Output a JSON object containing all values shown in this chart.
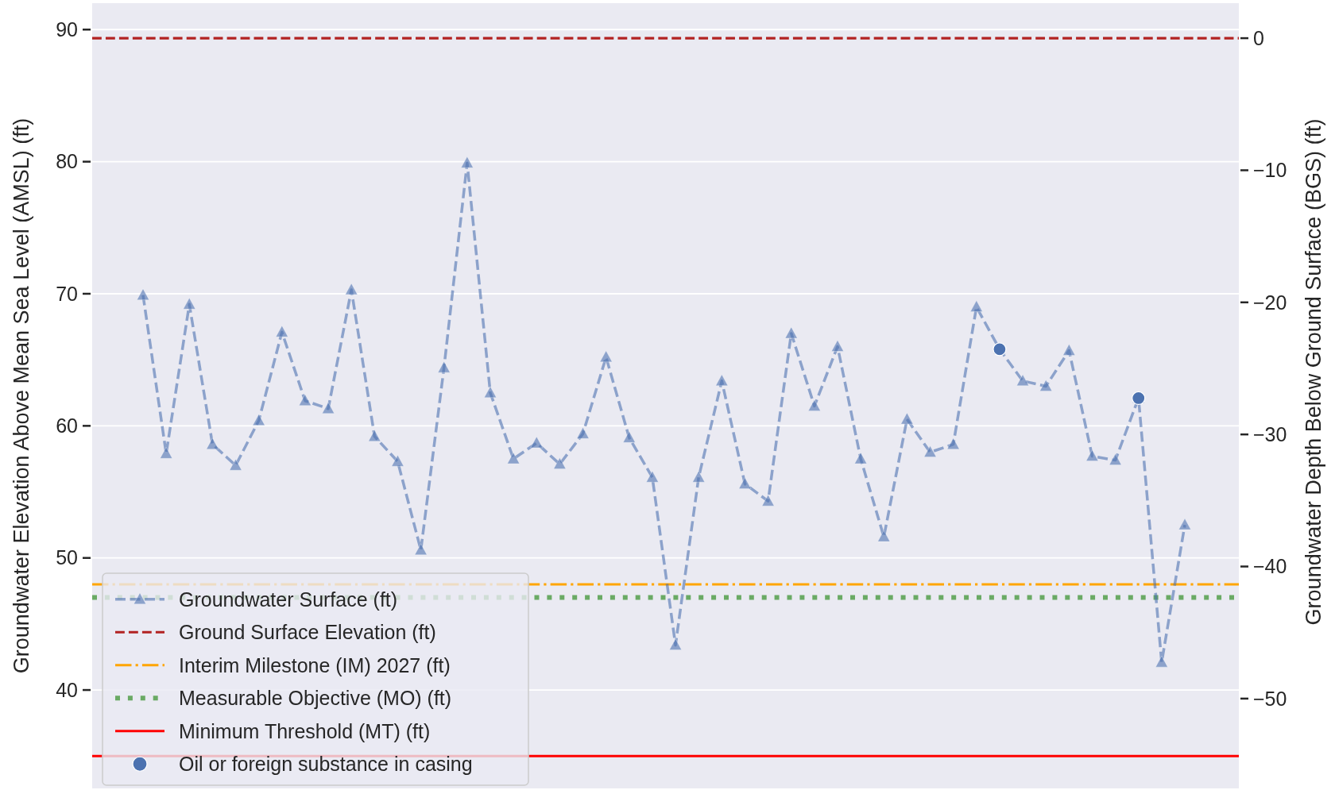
{
  "chart_data": {
    "type": "line",
    "ylabel": "Groundwater Elevation Above Mean Sea Level (AMSL) (ft)",
    "y2label": "Groundwater Depth Below Ground Surface (BGS) (ft)",
    "categories": [
      null,
      null,
      null,
      null,
      null,
      null,
      null,
      null,
      null,
      null,
      null,
      null,
      null,
      null,
      null,
      null,
      null,
      null,
      null,
      null,
      null,
      null,
      null,
      null,
      null,
      null,
      null,
      null,
      null,
      null,
      null,
      null,
      null,
      null,
      null,
      null,
      null,
      null,
      null,
      null,
      null,
      null,
      null,
      null,
      null,
      null
    ],
    "ylim": [
      32.55,
      92.0
    ],
    "yticks": [
      40,
      50,
      60,
      70,
      80,
      90
    ],
    "y2lim": [
      -56.8,
      2.65
    ],
    "y2ticks": [
      {
        "value": -50,
        "label": "−50"
      },
      {
        "value": -40,
        "label": "−40"
      },
      {
        "value": -30,
        "label": "−30"
      },
      {
        "value": -20,
        "label": "−20"
      },
      {
        "value": -10,
        "label": "−10"
      },
      0
    ],
    "grid": "y",
    "legend": "bottom left",
    "series": [
      {
        "name": "Groundwater Surface (ft)",
        "color": "#4c72b0",
        "marker": "triangle",
        "line_style": "dashed",
        "values": [
          69.9,
          57.9,
          69.2,
          58.6,
          57.0,
          60.4,
          67.1,
          61.9,
          61.3,
          70.3,
          59.2,
          57.3,
          50.6,
          64.4,
          79.9,
          62.5,
          57.5,
          58.7,
          57.1,
          59.4,
          65.2,
          59.1,
          56.1,
          43.4,
          56.1,
          63.4,
          55.6,
          54.3,
          67.0,
          61.5,
          66.0,
          57.5,
          51.6,
          60.5,
          58.0,
          58.6,
          69.0,
          65.8,
          63.4,
          63.0,
          65.7,
          57.7,
          57.4,
          62.1,
          42.1,
          52.5
        ]
      },
      {
        "name": "Oil or foreign substance in casing",
        "type": "scatter",
        "color": "#4c72b0",
        "marker": "circle",
        "values": [
          null,
          null,
          null,
          null,
          null,
          null,
          null,
          null,
          null,
          null,
          null,
          null,
          null,
          null,
          null,
          null,
          null,
          null,
          null,
          null,
          null,
          null,
          null,
          null,
          null,
          null,
          null,
          null,
          null,
          null,
          null,
          null,
          null,
          null,
          null,
          null,
          null,
          65.8,
          null,
          null,
          null,
          null,
          null,
          62.1,
          null,
          null
        ]
      }
    ],
    "ref_lines": [
      {
        "axis": "y2",
        "value": 0,
        "label": "Ground Surface Elevation (ft)",
        "color": "#b22222",
        "line_style": "dashed"
      },
      {
        "axis": "y",
        "value": 48.0,
        "label": "Interim Milestone (IM) 2027 (ft)",
        "color": "#ffa500",
        "line_style": "dashdot"
      },
      {
        "axis": "y",
        "value": 47.0,
        "label": "Measurable Objective (MO) (ft)",
        "color": "#6aaa64",
        "line_style": "dotted"
      },
      {
        "axis": "y",
        "value": 35.0,
        "label": "Minimum Threshold (MT) (ft)",
        "color": "#ff0000",
        "line_style": "solid"
      }
    ]
  }
}
